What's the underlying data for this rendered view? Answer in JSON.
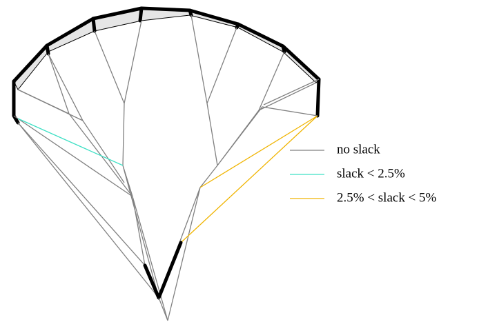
{
  "legend": [
    {
      "label": "no slack",
      "color": "#808080"
    },
    {
      "label": "slack < 2.5%",
      "color": "#3fe0c5"
    },
    {
      "label": "2.5% < slack < 5%",
      "color": "#f0b400"
    }
  ]
}
